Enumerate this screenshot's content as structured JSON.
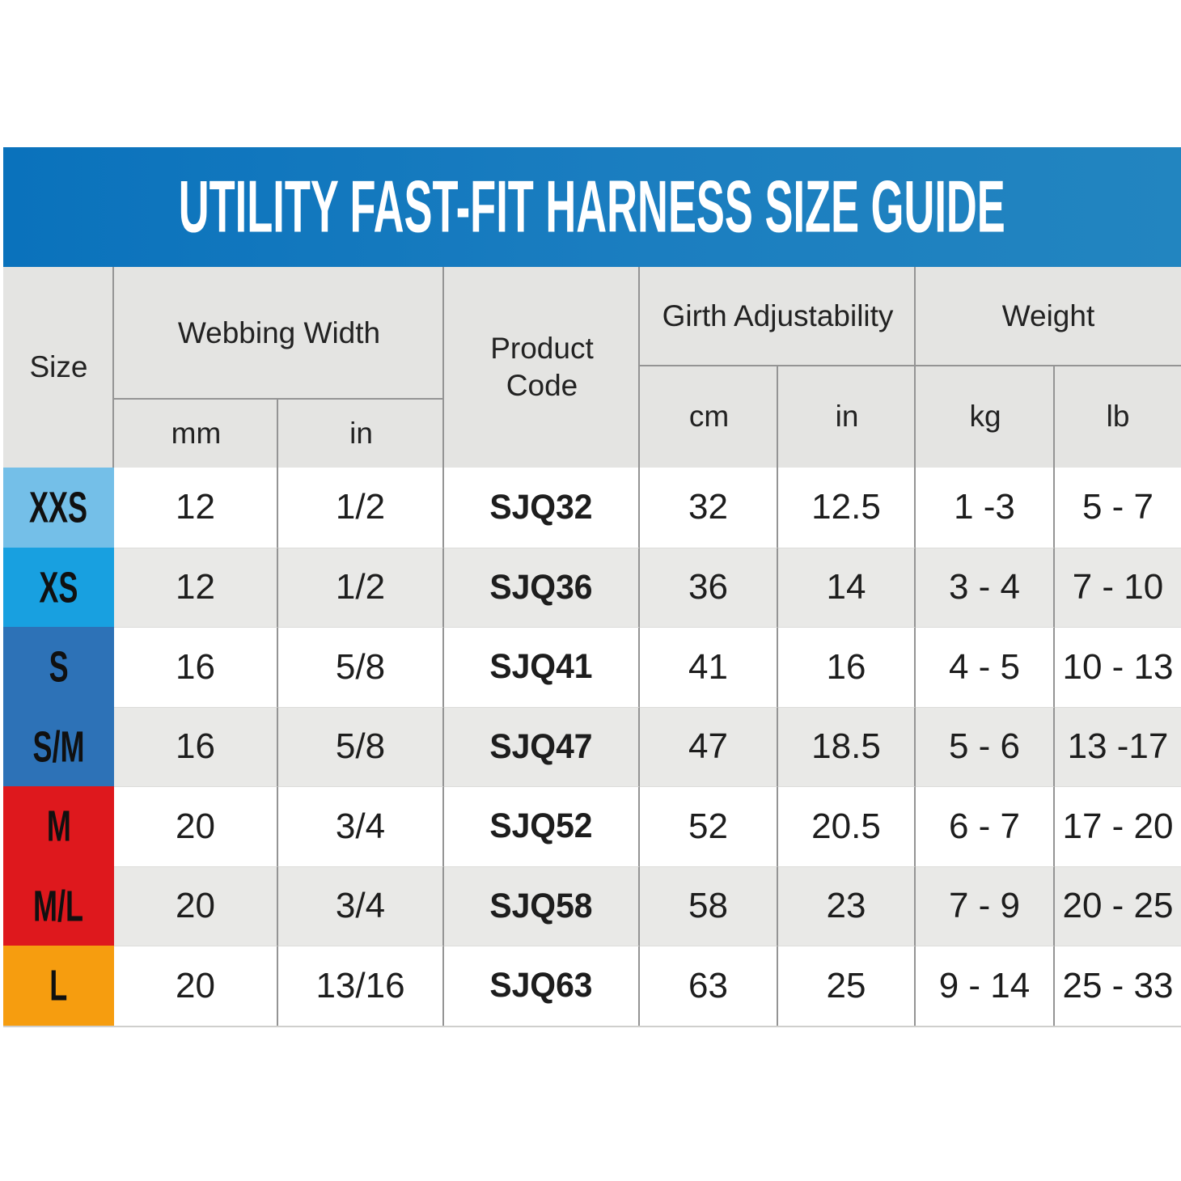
{
  "banner": {
    "title": "UTILITY FAST-FIT HARNESS SIZE GUIDE"
  },
  "header": {
    "size": "Size",
    "webbing_width": "Webbing Width",
    "product_code": "Product Code",
    "girth_adjustability": "Girth Adjustability",
    "weight": "Weight",
    "units": {
      "webbing_mm": "mm",
      "webbing_in": "in",
      "girth_cm": "cm",
      "girth_in": "in",
      "weight_kg": "kg",
      "weight_lb": "lb"
    }
  },
  "colors": {
    "banner_left": "#0a72bc",
    "banner_right": "#2285c0",
    "header_bg": "#e4e4e2",
    "row_alt_bg": "#e9e9e7",
    "grid_line": "#949494",
    "size_xxs": "#74bfe8",
    "size_xs": "#18a0e0",
    "size_s_sm": "#2d72b7",
    "size_m_ml": "#de181d",
    "size_l": "#f69d0f"
  },
  "rows": [
    {
      "size": "XXS",
      "color": "#74bfe8",
      "mm": "12",
      "in_w": "1/2",
      "code": "SJQ32",
      "cm": "32",
      "in_g": "12.5",
      "kg": "1 -3",
      "lb": "5 - 7"
    },
    {
      "size": "XS",
      "color": "#18a0e0",
      "mm": "12",
      "in_w": "1/2",
      "code": "SJQ36",
      "cm": "36",
      "in_g": "14",
      "kg": "3 - 4",
      "lb": "7 - 10"
    },
    {
      "size": "S",
      "color": "#2d72b7",
      "mm": "16",
      "in_w": "5/8",
      "code": "SJQ41",
      "cm": "41",
      "in_g": "16",
      "kg": "4 - 5",
      "lb": "10 - 13"
    },
    {
      "size": "S/M",
      "color": "#2d72b7",
      "mm": "16",
      "in_w": "5/8",
      "code": "SJQ47",
      "cm": "47",
      "in_g": "18.5",
      "kg": "5 - 6",
      "lb": "13 -17"
    },
    {
      "size": "M",
      "color": "#de181d",
      "mm": "20",
      "in_w": "3/4",
      "code": "SJQ52",
      "cm": "52",
      "in_g": "20.5",
      "kg": "6 - 7",
      "lb": "17 - 20"
    },
    {
      "size": "M/L",
      "color": "#de181d",
      "mm": "20",
      "in_w": "3/4",
      "code": "SJQ58",
      "cm": "58",
      "in_g": "23",
      "kg": "7 - 9",
      "lb": "20 - 25"
    },
    {
      "size": "L",
      "color": "#f69d0f",
      "mm": "20",
      "in_w": "13/16",
      "code": "SJQ63",
      "cm": "63",
      "in_g": "25",
      "kg": "9 - 14",
      "lb": "25 - 33"
    }
  ]
}
